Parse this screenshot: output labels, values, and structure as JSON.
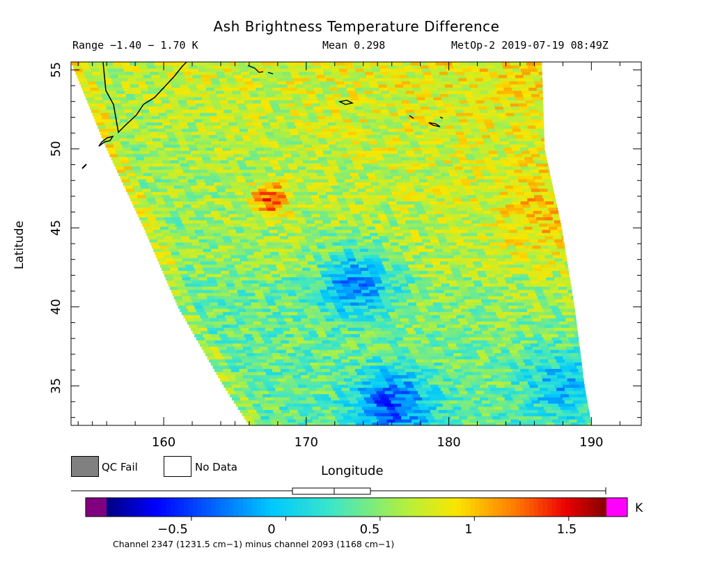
{
  "chart_data": {
    "type": "heatmap",
    "title": "Ash Brightness Temperature Difference",
    "header": {
      "range": "Range −1.40 − 1.70 K",
      "mean": "Mean 0.298",
      "source": "MetOp-2 2019-07-19 08:49Z"
    },
    "xlabel": "Longitude",
    "ylabel": "Latitude",
    "xlim": [
      153.5,
      193.5
    ],
    "ylim": [
      32.5,
      55.5
    ],
    "xticks": [
      160,
      170,
      180,
      190
    ],
    "yticks": [
      35,
      40,
      45,
      50,
      55
    ],
    "grid": false,
    "colorbar": {
      "min": -0.95,
      "max": 1.7,
      "unit": "K",
      "ticks": [
        {
          "value": -0.5,
          "label": "−0.5"
        },
        {
          "value": 0,
          "label": "0"
        },
        {
          "value": 0.5,
          "label": "0.5"
        },
        {
          "value": 1,
          "label": "1"
        },
        {
          "value": 1.5,
          "label": "1.5"
        }
      ],
      "below_color": "#800080",
      "above_color": "#ff00ff",
      "caption": "Channel 2347 (1231.5 cm−1) minus channel 2093 (1168 cm−1)"
    },
    "legend": [
      {
        "label": "QC Fail",
        "color": "#808080"
      },
      {
        "label": "No Data",
        "color": "#ffffff"
      }
    ],
    "swath_lon_bounds": {
      "lat": [
        32.5,
        35,
        40,
        45,
        50,
        55.5
      ],
      "west": [
        166.0,
        164.2,
        161.0,
        158.6,
        156.0,
        153.5
      ],
      "east": [
        190.0,
        189.5,
        188.8,
        187.9,
        186.7,
        186.5
      ]
    },
    "regions": [
      {
        "feature": "ash plume",
        "lon": 167.5,
        "lat": 46.8,
        "value": 1.5
      },
      {
        "feature": "cold cluster",
        "lon": 173.5,
        "lat": 41.5,
        "value": -0.4
      },
      {
        "feature": "cold cluster",
        "lon": 176.0,
        "lat": 33.8,
        "value": -0.6
      },
      {
        "feature": "cold area",
        "lon": 188.0,
        "lat": 35.0,
        "value": -0.2
      },
      {
        "feature": "warm strip",
        "lon": 186.5,
        "lat": 46.0,
        "value": 1.05
      }
    ]
  }
}
